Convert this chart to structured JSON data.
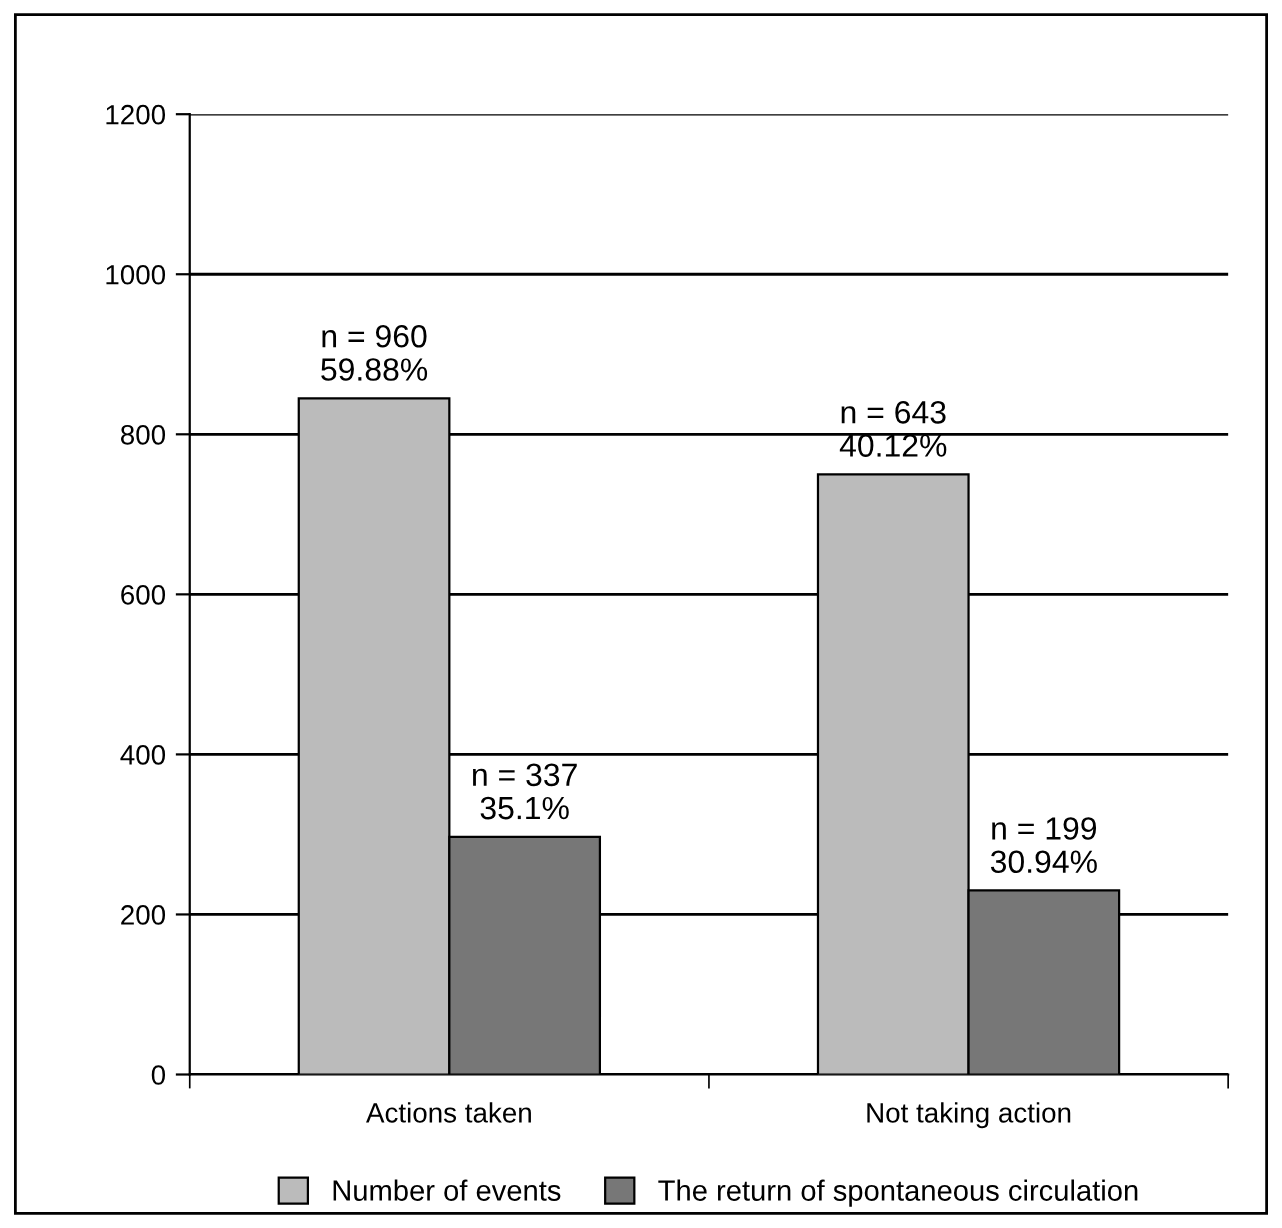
{
  "chart_data": {
    "type": "bar",
    "categories": [
      "Actions taken",
      "Not taking action"
    ],
    "series": [
      {
        "name": "Number of events",
        "color": "#bbbbbb",
        "values": [
          845,
          750
        ]
      },
      {
        "name": "The return of spontaneous circulation",
        "color": "#777777",
        "values": [
          297,
          230
        ]
      }
    ],
    "annotations": [
      {
        "text": "n = 960\n59.88%",
        "x": "Actions taken",
        "y": 845
      },
      {
        "text": "n = 643\n40.12%",
        "x": "Not taking action",
        "y": 750
      },
      {
        "text": "n = 337\n35.1%",
        "x": "Actions taken",
        "y": 297
      },
      {
        "text": "n = 199\n30.94%",
        "x": "Not taking action",
        "y": 230
      }
    ],
    "ylim": [
      0,
      1200
    ],
    "yticks": [
      0,
      200,
      400,
      600,
      800,
      1000,
      1200
    ],
    "grid": "y",
    "legend": "bottom"
  }
}
